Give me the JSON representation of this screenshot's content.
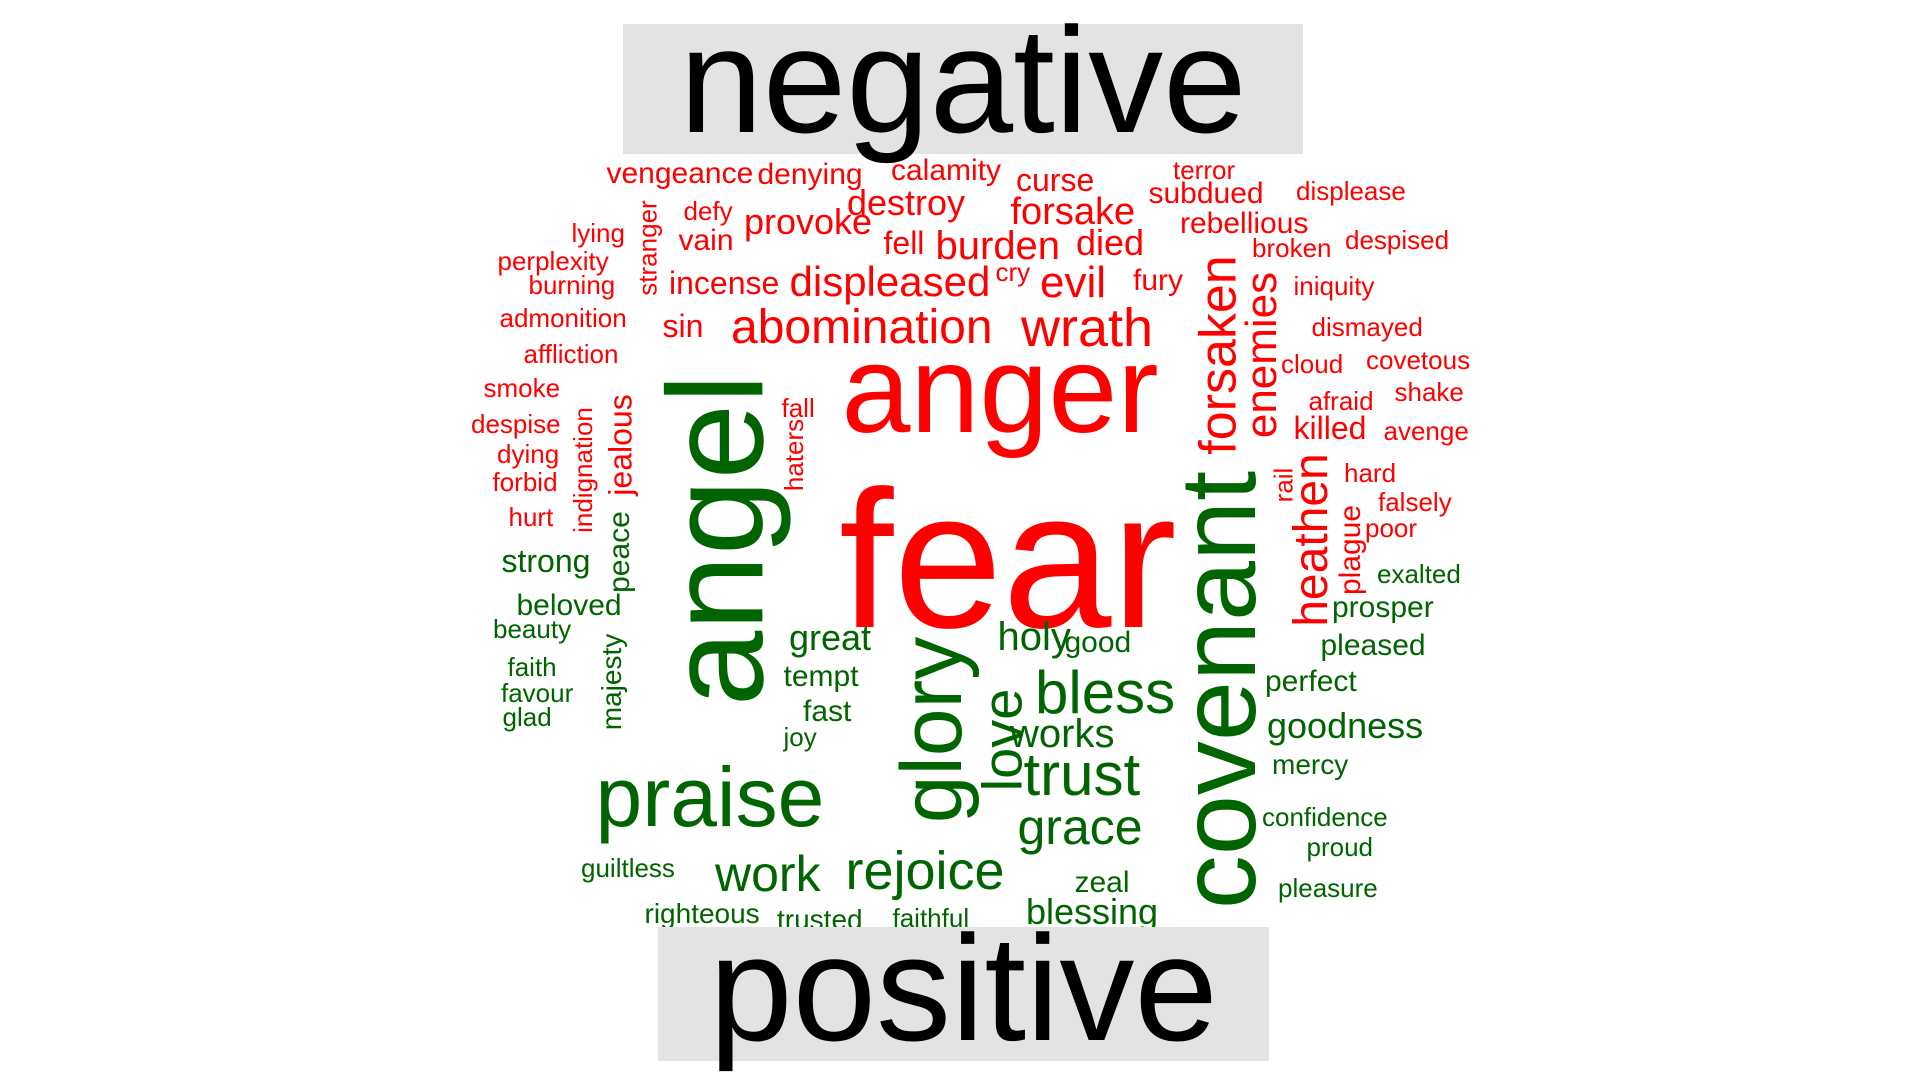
{
  "chart_data": {
    "type": "wordcloud",
    "groups": [
      {
        "name": "negative",
        "color": "#ff0000"
      },
      {
        "name": "positive",
        "color": "#006400"
      }
    ],
    "words": [
      {
        "text": "fear",
        "group": "negative",
        "weight": 100
      },
      {
        "text": "anger",
        "group": "negative",
        "weight": 62
      },
      {
        "text": "wrath",
        "group": "negative",
        "weight": 27
      },
      {
        "text": "abomination",
        "group": "negative",
        "weight": 24
      },
      {
        "text": "forsaken",
        "group": "negative",
        "weight": 26
      },
      {
        "text": "enemies",
        "group": "negative",
        "weight": 23
      },
      {
        "text": "heathen",
        "group": "negative",
        "weight": 24
      },
      {
        "text": "evil",
        "group": "negative",
        "weight": 22
      },
      {
        "text": "displeased",
        "group": "negative",
        "weight": 22
      },
      {
        "text": "burden",
        "group": "negative",
        "weight": 21
      },
      {
        "text": "forsake",
        "group": "negative",
        "weight": 20
      },
      {
        "text": "destroy",
        "group": "negative",
        "weight": 19
      },
      {
        "text": "provoke",
        "group": "negative",
        "weight": 19
      },
      {
        "text": "died",
        "group": "negative",
        "weight": 19
      },
      {
        "text": "curse",
        "group": "negative",
        "weight": 16
      },
      {
        "text": "calamity",
        "group": "negative",
        "weight": 15
      },
      {
        "text": "vengeance",
        "group": "negative",
        "weight": 15
      },
      {
        "text": "denying",
        "group": "negative",
        "weight": 15
      },
      {
        "text": "subdued",
        "group": "negative",
        "weight": 15
      },
      {
        "text": "rebellious",
        "group": "negative",
        "weight": 15
      },
      {
        "text": "incense",
        "group": "negative",
        "weight": 17
      },
      {
        "text": "sin",
        "group": "negative",
        "weight": 17
      },
      {
        "text": "fell",
        "group": "negative",
        "weight": 16
      },
      {
        "text": "vain",
        "group": "negative",
        "weight": 15
      },
      {
        "text": "fury",
        "group": "negative",
        "weight": 15
      },
      {
        "text": "killed",
        "group": "negative",
        "weight": 17
      },
      {
        "text": "plague",
        "group": "negative",
        "weight": 16
      },
      {
        "text": "jealous",
        "group": "negative",
        "weight": 16
      },
      {
        "text": "terror",
        "group": "negative",
        "weight": 13
      },
      {
        "text": "displease",
        "group": "negative",
        "weight": 13
      },
      {
        "text": "despised",
        "group": "negative",
        "weight": 13
      },
      {
        "text": "defy",
        "group": "negative",
        "weight": 13
      },
      {
        "text": "lying",
        "group": "negative",
        "weight": 13
      },
      {
        "text": "perplexity",
        "group": "negative",
        "weight": 13
      },
      {
        "text": "stranger",
        "group": "negative",
        "weight": 13
      },
      {
        "text": "cry",
        "group": "negative",
        "weight": 13
      },
      {
        "text": "broken",
        "group": "negative",
        "weight": 13
      },
      {
        "text": "iniquity",
        "group": "negative",
        "weight": 13
      },
      {
        "text": "burning",
        "group": "negative",
        "weight": 13
      },
      {
        "text": "admonition",
        "group": "negative",
        "weight": 13
      },
      {
        "text": "dismayed",
        "group": "negative",
        "weight": 13
      },
      {
        "text": "affliction",
        "group": "negative",
        "weight": 13
      },
      {
        "text": "cloud",
        "group": "negative",
        "weight": 13
      },
      {
        "text": "covetous",
        "group": "negative",
        "weight": 13
      },
      {
        "text": "smoke",
        "group": "negative",
        "weight": 13
      },
      {
        "text": "afraid",
        "group": "negative",
        "weight": 13
      },
      {
        "text": "shake",
        "group": "negative",
        "weight": 13
      },
      {
        "text": "fall",
        "group": "negative",
        "weight": 13
      },
      {
        "text": "despise",
        "group": "negative",
        "weight": 13
      },
      {
        "text": "avenge",
        "group": "negative",
        "weight": 13
      },
      {
        "text": "haters",
        "group": "negative",
        "weight": 13
      },
      {
        "text": "dying",
        "group": "negative",
        "weight": 13
      },
      {
        "text": "indignation",
        "group": "negative",
        "weight": 13
      },
      {
        "text": "forbid",
        "group": "negative",
        "weight": 13
      },
      {
        "text": "rail",
        "group": "negative",
        "weight": 13
      },
      {
        "text": "hard",
        "group": "negative",
        "weight": 13
      },
      {
        "text": "falsely",
        "group": "negative",
        "weight": 13
      },
      {
        "text": "hurt",
        "group": "negative",
        "weight": 13
      },
      {
        "text": "poor",
        "group": "negative",
        "weight": 13
      },
      {
        "text": "angel",
        "group": "positive",
        "weight": 66
      },
      {
        "text": "covenant",
        "group": "positive",
        "weight": 53
      },
      {
        "text": "glory",
        "group": "positive",
        "weight": 42
      },
      {
        "text": "praise",
        "group": "positive",
        "weight": 41
      },
      {
        "text": "trust",
        "group": "positive",
        "weight": 29
      },
      {
        "text": "bless",
        "group": "positive",
        "weight": 29
      },
      {
        "text": "love",
        "group": "positive",
        "weight": 28
      },
      {
        "text": "rejoice",
        "group": "positive",
        "weight": 27
      },
      {
        "text": "grace",
        "group": "positive",
        "weight": 25
      },
      {
        "text": "work",
        "group": "positive",
        "weight": 25
      },
      {
        "text": "holy",
        "group": "positive",
        "weight": 20
      },
      {
        "text": "works",
        "group": "positive",
        "weight": 20
      },
      {
        "text": "goodness",
        "group": "positive",
        "weight": 19
      },
      {
        "text": "blessing",
        "group": "positive",
        "weight": 19
      },
      {
        "text": "great",
        "group": "positive",
        "weight": 18
      },
      {
        "text": "strong",
        "group": "positive",
        "weight": 17
      },
      {
        "text": "prosper",
        "group": "positive",
        "weight": 16
      },
      {
        "text": "pleased",
        "group": "positive",
        "weight": 16
      },
      {
        "text": "perfect",
        "group": "positive",
        "weight": 16
      },
      {
        "text": "tempt",
        "group": "positive",
        "weight": 16
      },
      {
        "text": "beloved",
        "group": "positive",
        "weight": 16
      },
      {
        "text": "peace",
        "group": "positive",
        "weight": 16
      },
      {
        "text": "good",
        "group": "positive",
        "weight": 16
      },
      {
        "text": "fast",
        "group": "positive",
        "weight": 16
      },
      {
        "text": "zeal",
        "group": "positive",
        "weight": 16
      },
      {
        "text": "righteous",
        "group": "positive",
        "weight": 16
      },
      {
        "text": "trusted",
        "group": "positive",
        "weight": 16
      },
      {
        "text": "mercy",
        "group": "positive",
        "weight": 15
      },
      {
        "text": "majesty",
        "group": "positive",
        "weight": 15
      },
      {
        "text": "faithful",
        "group": "positive",
        "weight": 14
      },
      {
        "text": "exalted",
        "group": "positive",
        "weight": 14
      },
      {
        "text": "beauty",
        "group": "positive",
        "weight": 14
      },
      {
        "text": "faith",
        "group": "positive",
        "weight": 14
      },
      {
        "text": "favour",
        "group": "positive",
        "weight": 14
      },
      {
        "text": "glad",
        "group": "positive",
        "weight": 14
      },
      {
        "text": "joy",
        "group": "positive",
        "weight": 13
      },
      {
        "text": "confidence",
        "group": "positive",
        "weight": 13
      },
      {
        "text": "proud",
        "group": "positive",
        "weight": 13
      },
      {
        "text": "guiltless",
        "group": "positive",
        "weight": 13
      },
      {
        "text": "pleasure",
        "group": "positive",
        "weight": 13
      }
    ]
  }
}
